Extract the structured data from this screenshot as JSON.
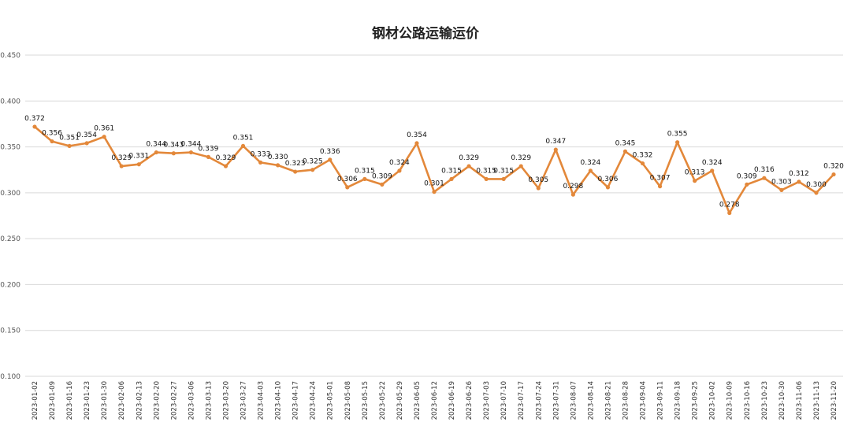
{
  "chart_data": {
    "type": "line",
    "title": "钢材公路运输运价",
    "xlabel": "",
    "ylabel": "",
    "ylim": [
      0.1,
      0.45
    ],
    "yticks": [
      "0.100",
      "0.150",
      "0.200",
      "0.250",
      "0.300",
      "0.350",
      "0.400",
      "0.450"
    ],
    "grid": "horizontal",
    "legend": "none",
    "line_color": "#E3883A",
    "categories": [
      "2023-01-02",
      "2023-01-09",
      "2023-01-16",
      "2023-01-23",
      "2023-01-30",
      "2023-02-06",
      "2023-02-13",
      "2023-02-20",
      "2023-02-27",
      "2023-03-06",
      "2023-03-13",
      "2023-03-20",
      "2023-03-27",
      "2023-04-03",
      "2023-04-10",
      "2023-04-17",
      "2023-04-24",
      "2023-05-01",
      "2023-05-08",
      "2023-05-15",
      "2023-05-22",
      "2023-05-29",
      "2023-06-05",
      "2023-06-12",
      "2023-06-19",
      "2023-06-26",
      "2023-07-03",
      "2023-07-10",
      "2023-07-17",
      "2023-07-24",
      "2023-07-31",
      "2023-08-07",
      "2023-08-14",
      "2023-08-21",
      "2023-08-28",
      "2023-09-04",
      "2023-09-11",
      "2023-09-18",
      "2023-09-25",
      "2023-10-02",
      "2023-10-09",
      "2023-10-16",
      "2023-10-23",
      "2023-10-30",
      "2023-11-06",
      "2023-11-13",
      "2023-11-20"
    ],
    "category_labels": [
      "2023-01-02",
      "2023-01-09",
      "2023-01-16",
      "2023-01-23",
      "2023-01-30",
      "2023-02-06",
      "2023-02-13",
      "2023-02-20",
      "2023-02-27",
      "2023-03-06",
      "2023-03-13",
      "2023-03-20",
      "2023-03-27",
      "2023-04-03",
      "2023-04-10",
      "2023-04-17",
      "2023-04-24",
      "2023-05-01",
      "2023-05-08",
      "2023-05-15",
      "2023-05-22",
      "2023-05-29",
      "2023-06-05",
      "2023-06-12",
      "2023-06-19",
      "2023-06-26",
      "2023-07-03",
      "2023-07-10",
      "2023-07-17",
      "2023-07-24",
      "2023-07-31",
      "2023-08-07",
      "2023-08-14",
      "2023-08-21",
      "2023-08-28",
      "2023-09-04",
      "2023-09-11",
      "2023-09-18",
      "2023-09-25",
      "2023-10-02",
      "2023-10-09",
      "2023-10-16",
      "2023-10-23",
      "2023-10-30",
      "2023-11-06",
      "2023-11-13",
      "2023-11-20"
    ],
    "values": [
      0.372,
      0.356,
      0.351,
      0.354,
      0.361,
      0.329,
      0.331,
      0.344,
      0.343,
      0.344,
      0.339,
      0.329,
      0.351,
      0.333,
      0.33,
      0.323,
      0.325,
      0.336,
      0.306,
      0.315,
      0.309,
      0.324,
      0.354,
      0.301,
      0.315,
      0.329,
      0.315,
      0.315,
      0.329,
      0.305,
      0.347,
      0.298,
      0.324,
      0.306,
      0.345,
      0.332,
      0.307,
      0.355,
      0.313,
      0.324,
      0.278,
      0.309,
      0.316,
      0.303,
      0.312,
      0.3,
      0.32
    ],
    "data_labels": [
      "0.372",
      "0.356",
      "0.351",
      "0.354",
      "0.361",
      "0.329",
      "0.331",
      "0.344",
      "0.343",
      "0.344",
      "0.339",
      "0.329",
      "0.351",
      "0.333",
      "0.330",
      "0.323",
      "0.325",
      "0.336",
      "0.306",
      "0.315",
      "0.309",
      "0.324",
      "0.354",
      "0.301",
      "0.315",
      "0.329",
      "0.315",
      "0.315",
      "0.329",
      "0.305",
      "0.347",
      "0.298",
      "0.324",
      "0.306",
      "0.345",
      "0.332",
      "0.307",
      "0.355",
      "0.313",
      "0.324",
      "0.278",
      "0.309",
      "0.316",
      "0.303",
      "0.312",
      "0.300",
      "0.320"
    ]
  }
}
